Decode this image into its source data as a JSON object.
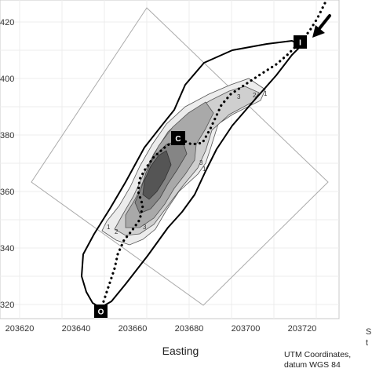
{
  "axes": {
    "xlabel": "Easting",
    "x_ticks": [
      "203620",
      "203640",
      "203660",
      "203680",
      "203700",
      "203720"
    ],
    "y_ticks": [
      "420",
      "400",
      "380",
      "360",
      "340",
      "320"
    ]
  },
  "markers": {
    "inlet": "I",
    "center": "C",
    "outlet": "O"
  },
  "contour_labels": [
    "1",
    "2",
    "3",
    "1",
    "2",
    "3",
    "3",
    "1"
  ],
  "note": {
    "line1": "UTM Coordinates,",
    "line2": "datum WGS 84"
  },
  "cutoff_text": {
    "line1": "S",
    "line2": "t"
  },
  "colors": {
    "grid": "#ebebeb",
    "panel_border": "#c0c0c0",
    "outline": "#000000",
    "track": "#000000",
    "fill_1": "#ececec",
    "fill_2": "#cfcfcf",
    "fill_3": "#a9a9a9",
    "fill_4": "#858585",
    "fill_5": "#555555"
  }
}
